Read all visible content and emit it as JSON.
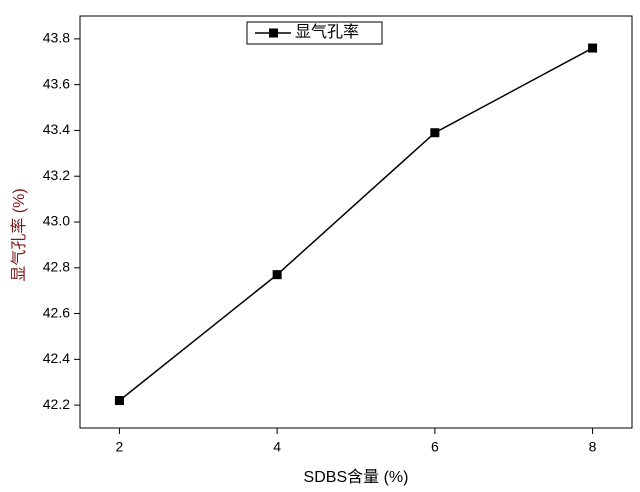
{
  "chart_data": {
    "type": "line",
    "xlabel": "SDBS含量 (%)",
    "ylabel": "显气孔率 (%)",
    "x": [
      2,
      4,
      6,
      8
    ],
    "series": [
      {
        "name": "显气孔率",
        "color": "#000000",
        "values": [
          42.22,
          42.77,
          43.39,
          43.76
        ]
      }
    ],
    "xlim": [
      1.5,
      8.5
    ],
    "xticks": [
      2,
      4,
      6,
      8
    ],
    "ylim": [
      42.1,
      43.9
    ],
    "yticks": [
      42.2,
      42.4,
      42.6,
      42.8,
      {
        "value": 43,
        "label": "43.0"
      },
      43.2,
      43.4,
      43.6,
      43.8
    ],
    "legend": "upper center",
    "marker": "square"
  }
}
